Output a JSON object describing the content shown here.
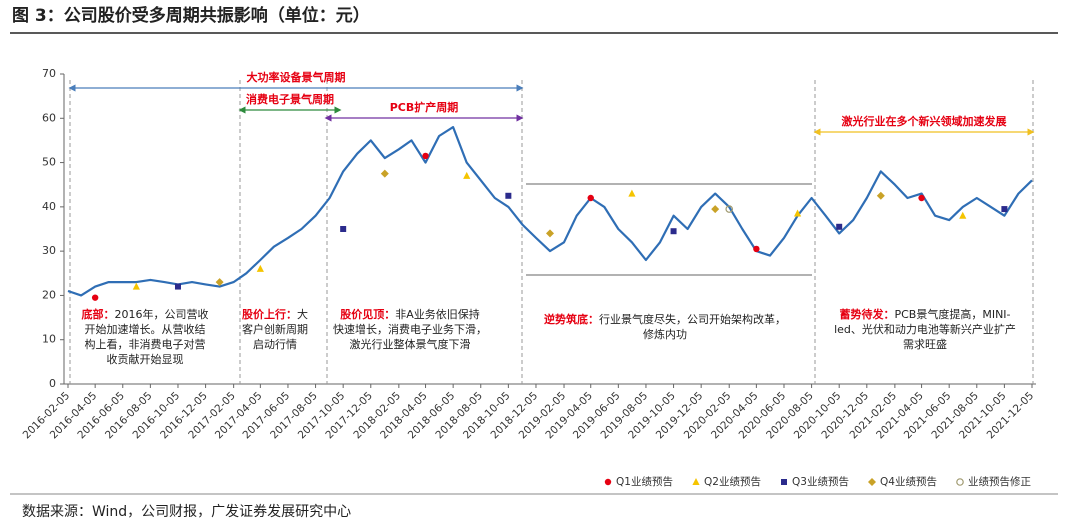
{
  "chart_data": {
    "type": "line",
    "title": "图 3：公司股价受多周期共振影响（单位：元）",
    "source": "数据来源：Wind，公司财报，广发证券发展研究中心",
    "ylim": [
      0,
      70
    ],
    "yticks": [
      0,
      10,
      20,
      30,
      40,
      50,
      60,
      70
    ],
    "xlim": [
      "2016-02-05",
      "2021-12-05"
    ],
    "xticks": [
      "2016-02-05",
      "2016-04-05",
      "2016-06-05",
      "2016-08-05",
      "2016-10-05",
      "2016-12-05",
      "2017-02-05",
      "2017-04-05",
      "2017-06-05",
      "2017-08-05",
      "2017-10-05",
      "2017-12-05",
      "2018-02-05",
      "2018-04-05",
      "2018-06-05",
      "2018-08-05",
      "2018-10-05",
      "2018-12-05",
      "2019-02-05",
      "2019-04-05",
      "2019-06-05",
      "2019-08-05",
      "2019-10-05",
      "2019-12-05",
      "2020-02-05",
      "2020-04-05",
      "2020-06-05",
      "2020-08-05",
      "2020-10-05",
      "2020-12-05",
      "2021-02-05",
      "2021-04-05",
      "2021-06-05",
      "2021-08-05",
      "2021-10-05",
      "2021-12-05"
    ],
    "x": [
      "2016-02-05",
      "2016-03-05",
      "2016-04-05",
      "2016-05-05",
      "2016-06-05",
      "2016-07-05",
      "2016-08-05",
      "2016-09-05",
      "2016-10-05",
      "2016-11-05",
      "2016-12-05",
      "2017-01-05",
      "2017-02-05",
      "2017-03-05",
      "2017-04-05",
      "2017-05-05",
      "2017-06-05",
      "2017-07-05",
      "2017-08-05",
      "2017-09-05",
      "2017-10-05",
      "2017-11-05",
      "2017-12-05",
      "2018-01-05",
      "2018-02-05",
      "2018-03-05",
      "2018-04-05",
      "2018-05-05",
      "2018-06-05",
      "2018-07-05",
      "2018-08-05",
      "2018-09-05",
      "2018-10-05",
      "2018-11-05",
      "2018-12-05",
      "2019-01-05",
      "2019-02-05",
      "2019-03-05",
      "2019-04-05",
      "2019-05-05",
      "2019-06-05",
      "2019-07-05",
      "2019-08-05",
      "2019-09-05",
      "2019-10-05",
      "2019-11-05",
      "2019-12-05",
      "2020-01-05",
      "2020-02-05",
      "2020-03-05",
      "2020-04-05",
      "2020-05-05",
      "2020-06-05",
      "2020-07-05",
      "2020-08-05",
      "2020-09-05",
      "2020-10-05",
      "2020-11-05",
      "2020-12-05",
      "2021-01-05",
      "2021-02-05",
      "2021-03-05",
      "2021-04-05",
      "2021-05-05",
      "2021-06-05",
      "2021-07-05",
      "2021-08-05",
      "2021-09-05",
      "2021-10-05",
      "2021-11-05",
      "2021-12-05"
    ],
    "values": [
      21,
      20,
      22,
      23,
      23,
      23,
      23.5,
      23,
      22.5,
      23,
      22.5,
      22,
      23,
      25,
      28,
      31,
      33,
      35,
      38,
      42,
      48,
      52,
      55,
      51,
      53,
      55,
      50,
      56,
      58,
      50,
      46,
      42,
      40,
      36,
      33,
      30,
      32,
      38,
      42,
      40,
      35,
      32,
      28,
      32,
      38,
      35,
      40,
      43,
      40,
      35,
      30,
      29,
      33,
      38,
      42,
      38,
      34,
      37,
      42,
      48,
      45,
      42,
      43,
      38,
      37,
      40,
      42,
      40,
      38,
      43,
      46
    ],
    "color": "#2f6eb5",
    "markers": [
      {
        "name": "Q1业绩预告",
        "shape": "circle",
        "color": "#e60012",
        "x": [
          "2016-04-05",
          "2018-04-05",
          "2019-04-05",
          "2020-04-05",
          "2021-04-05"
        ],
        "values": [
          19.5,
          51.5,
          42,
          30.5,
          42
        ]
      },
      {
        "name": "Q2业绩预告",
        "shape": "triangle",
        "color": "#f5c400",
        "x": [
          "2016-07-05",
          "2017-04-05",
          "2018-07-05",
          "2019-07-05",
          "2020-07-05",
          "2021-07-05"
        ],
        "values": [
          22,
          26,
          47,
          43,
          38.5,
          38
        ]
      },
      {
        "name": "Q3业绩预告",
        "shape": "square",
        "color": "#2b2b8c",
        "x": [
          "2016-10-05",
          "2017-10-05",
          "2018-10-05",
          "2019-10-05",
          "2020-10-05",
          "2021-10-05"
        ],
        "values": [
          22,
          35,
          42.5,
          34.5,
          35.5,
          39.5
        ]
      },
      {
        "name": "Q4业绩预告",
        "shape": "diamond",
        "color": "#c9a227",
        "x": [
          "2017-01-05",
          "2018-01-05",
          "2019-01-05",
          "2020-01-05",
          "2021-01-05"
        ],
        "values": [
          23,
          47.5,
          34,
          39.5,
          42.5
        ]
      },
      {
        "name": "业绩预告修正",
        "shape": "hollow",
        "color": "#a09a70",
        "x": [
          "2020-02-05"
        ],
        "values": [
          39.5
        ]
      }
    ],
    "periods": [
      {
        "label": "大功率设备景气周期",
        "color": "#4a7ebb"
      },
      {
        "label": "消费电子景气周期",
        "color": "#2e8b3d"
      },
      {
        "label": "PCB扩产周期",
        "color": "#7030a0"
      },
      {
        "label": "激光行业在多个新兴领域加速发展",
        "color": "#f0c020"
      }
    ],
    "annotations": [
      {
        "title": "底部：",
        "lines": [
          "2016年，公司营收",
          "开始加速增长。从营收结",
          "构上看，非消费电子对营",
          "收贡献开始显现"
        ]
      },
      {
        "title": "股价上行：",
        "lines": [
          "大",
          "客户创新周期",
          "启动行情"
        ]
      },
      {
        "title": "股价见顶：",
        "lines": [
          "非A业务依旧保持",
          "快速增长，消费电子业务下滑，",
          "激光行业整体景气度下滑"
        ]
      },
      {
        "title": "逆势筑底：",
        "lines": [
          "行业景气度尽失，公司开始架构改革，",
          "修炼内功"
        ]
      },
      {
        "title": "蓄势待发：",
        "lines": [
          "PCB景气度提高，MINI-",
          "led、光伏和动力电池等新兴产业扩产",
          "需求旺盛"
        ]
      }
    ]
  }
}
